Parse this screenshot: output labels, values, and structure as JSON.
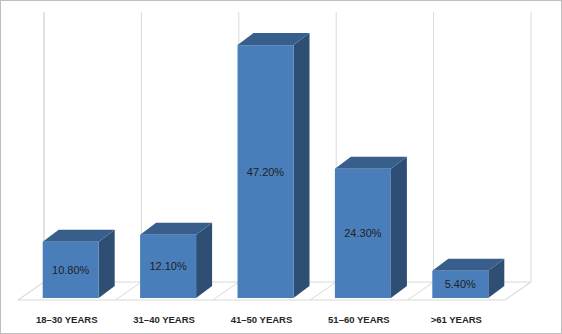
{
  "chart_data": {
    "type": "bar",
    "categories": [
      "18–30 YEARS",
      "31–40 YEARS",
      "41–50 YEARS",
      "51–60 YEARS",
      ">61 YEARS"
    ],
    "values": [
      10.8,
      12.1,
      47.2,
      24.3,
      5.4
    ],
    "value_labels": [
      "10.80%",
      "12.10%",
      "47.20%",
      "24.30%",
      "5.40%"
    ],
    "color": "#4a7ebb",
    "ylim": [
      0,
      50
    ],
    "grid": true,
    "data_labels": true,
    "tick_labels": "x"
  }
}
